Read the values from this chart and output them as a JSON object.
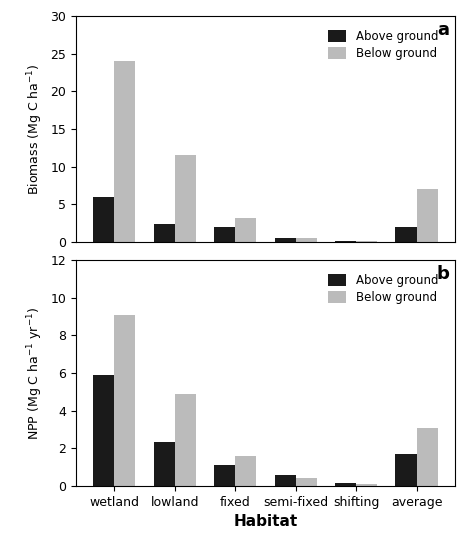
{
  "categories": [
    "wetland",
    "lowland",
    "fixed",
    "semi-fixed",
    "shifting",
    "average"
  ],
  "biomass_above": [
    6.0,
    2.4,
    2.0,
    0.6,
    0.15,
    2.0
  ],
  "biomass_below": [
    24.0,
    11.5,
    3.2,
    0.5,
    0.15,
    7.0
  ],
  "npp_above": [
    5.9,
    2.35,
    1.1,
    0.6,
    0.15,
    1.7
  ],
  "npp_below": [
    9.1,
    4.9,
    1.6,
    0.4,
    0.1,
    3.1
  ],
  "biomass_ylabel": "Biomass (Mg C ha$^{-1}$)",
  "npp_ylabel": "NPP (Mg C ha$^{-1}$ yr$^{-1}$)",
  "xlabel": "Habitat",
  "biomass_ylim": [
    0,
    30
  ],
  "biomass_yticks": [
    0,
    5,
    10,
    15,
    20,
    25,
    30
  ],
  "npp_ylim": [
    0,
    12
  ],
  "npp_yticks": [
    0,
    2,
    4,
    6,
    8,
    10,
    12
  ],
  "above_color": "#1a1a1a",
  "below_color": "#bbbbbb",
  "legend_labels": [
    "Above ground",
    "Below ground"
  ],
  "label_a": "a",
  "label_b": "b",
  "bar_width": 0.35,
  "background_color": "#ffffff"
}
